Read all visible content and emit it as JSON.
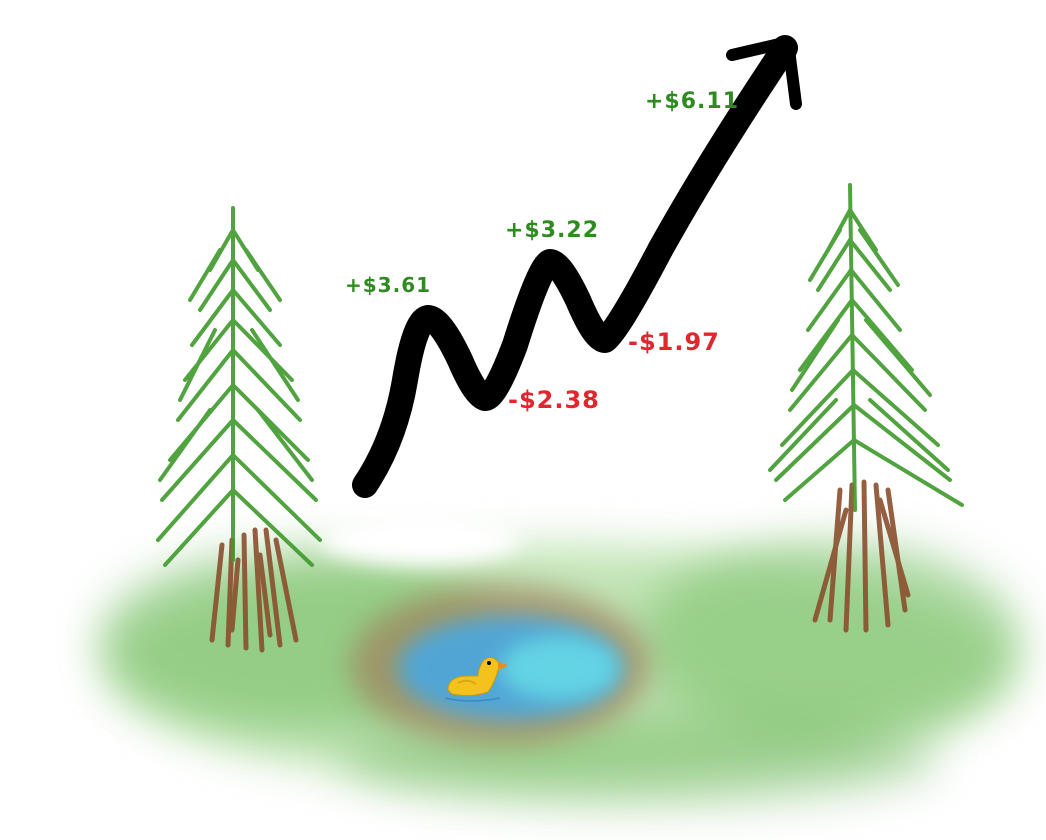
{
  "labels": {
    "gain_1": "+$3.61",
    "gain_2": "+$3.22",
    "gain_3": "+$6.11",
    "loss_1": "-$2.38",
    "loss_2": "-$1.97"
  },
  "colors": {
    "gain": "#2e8b1f",
    "loss": "#e0272d",
    "trend_line": "#000000",
    "grass": "#7fc26a",
    "pond": "#4bb8e8",
    "pond_edge": "#9a7f5a",
    "tree_needles": "#3f9a2c",
    "tree_trunk": "#8a4f2e",
    "duck_body": "#f4c21c",
    "duck_beak": "#f08a1c"
  },
  "icons": {
    "left_tree": "pine-tree-icon",
    "right_tree": "pine-tree-icon",
    "duck": "duck-icon",
    "trend": "up-arrow-icon"
  }
}
